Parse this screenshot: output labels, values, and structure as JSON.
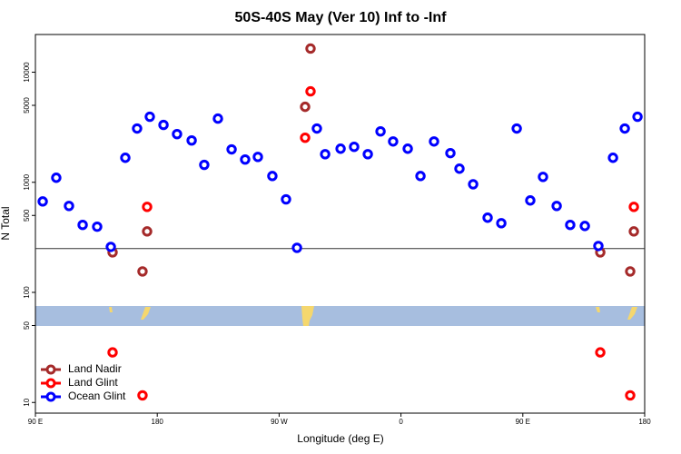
{
  "chart_data": {
    "type": "scatter",
    "title": "50S-40S May (Ver 10)   Inf to -Inf",
    "xlabel": "Longitude (deg E)",
    "ylabel": "N Total",
    "xlim": [
      90,
      540
    ],
    "xticks": [
      {
        "value": 90,
        "label": "90 E"
      },
      {
        "value": 180,
        "label": "180"
      },
      {
        "value": 270,
        "label": "90 W"
      },
      {
        "value": 360,
        "label": "0"
      },
      {
        "value": 450,
        "label": "90 E"
      },
      {
        "value": 540,
        "label": "180"
      }
    ],
    "ylim": [
      8,
      22000
    ],
    "log_y": true,
    "yticks": [
      10,
      50,
      100,
      500,
      1000,
      5000,
      10000
    ],
    "hline": 250,
    "legend": "bottom-left",
    "series": [
      {
        "name": "Land Nadir",
        "color": "#a52a2a",
        "x": [
          147.0,
          169.1,
          172.5,
          289.2,
          293.2,
          507.2,
          529.3,
          532.0
        ],
        "values": [
          231,
          155,
          358,
          4850,
          16400,
          231,
          155,
          358
        ]
      },
      {
        "name": "Land Glint",
        "color": "#ff0000",
        "x": [
          147.0,
          169.1,
          172.5,
          289.2,
          293.2,
          507.2,
          529.3,
          532.0
        ],
        "values": [
          28.5,
          11.6,
          598,
          2540,
          6700,
          28.5,
          11.6,
          598
        ]
      },
      {
        "name": "Ocean Glint",
        "color": "#0000ff",
        "x": [
          95.4,
          105.4,
          114.8,
          124.9,
          135.6,
          145.7,
          156.4,
          165.1,
          174.5,
          184.6,
          194.6,
          205.4,
          214.7,
          224.8,
          234.9,
          244.9,
          254.3,
          265.0,
          275.1,
          283.2,
          297.9,
          304.0,
          315.4,
          325.4,
          335.5,
          344.9,
          354.2,
          365.0,
          374.4,
          384.4,
          396.5,
          403.2,
          413.3,
          424.0,
          434.1,
          445.5,
          455.5,
          464.9,
          475.0,
          485.0,
          495.8,
          505.8,
          516.6,
          525.3,
          534.7
        ],
        "values": [
          670,
          1100,
          610,
          410,
          395,
          259,
          1670,
          3080,
          3940,
          3320,
          2740,
          2400,
          1440,
          3790,
          1990,
          1610,
          1700,
          1140,
          700,
          254,
          3080,
          1800,
          2020,
          2100,
          1800,
          2900,
          2350,
          2020,
          1140,
          2350,
          1840,
          1330,
          960,
          477,
          425,
          3080,
          684,
          1120,
          610,
          410,
          401,
          264,
          1670,
          3080,
          3940
        ]
      }
    ]
  }
}
